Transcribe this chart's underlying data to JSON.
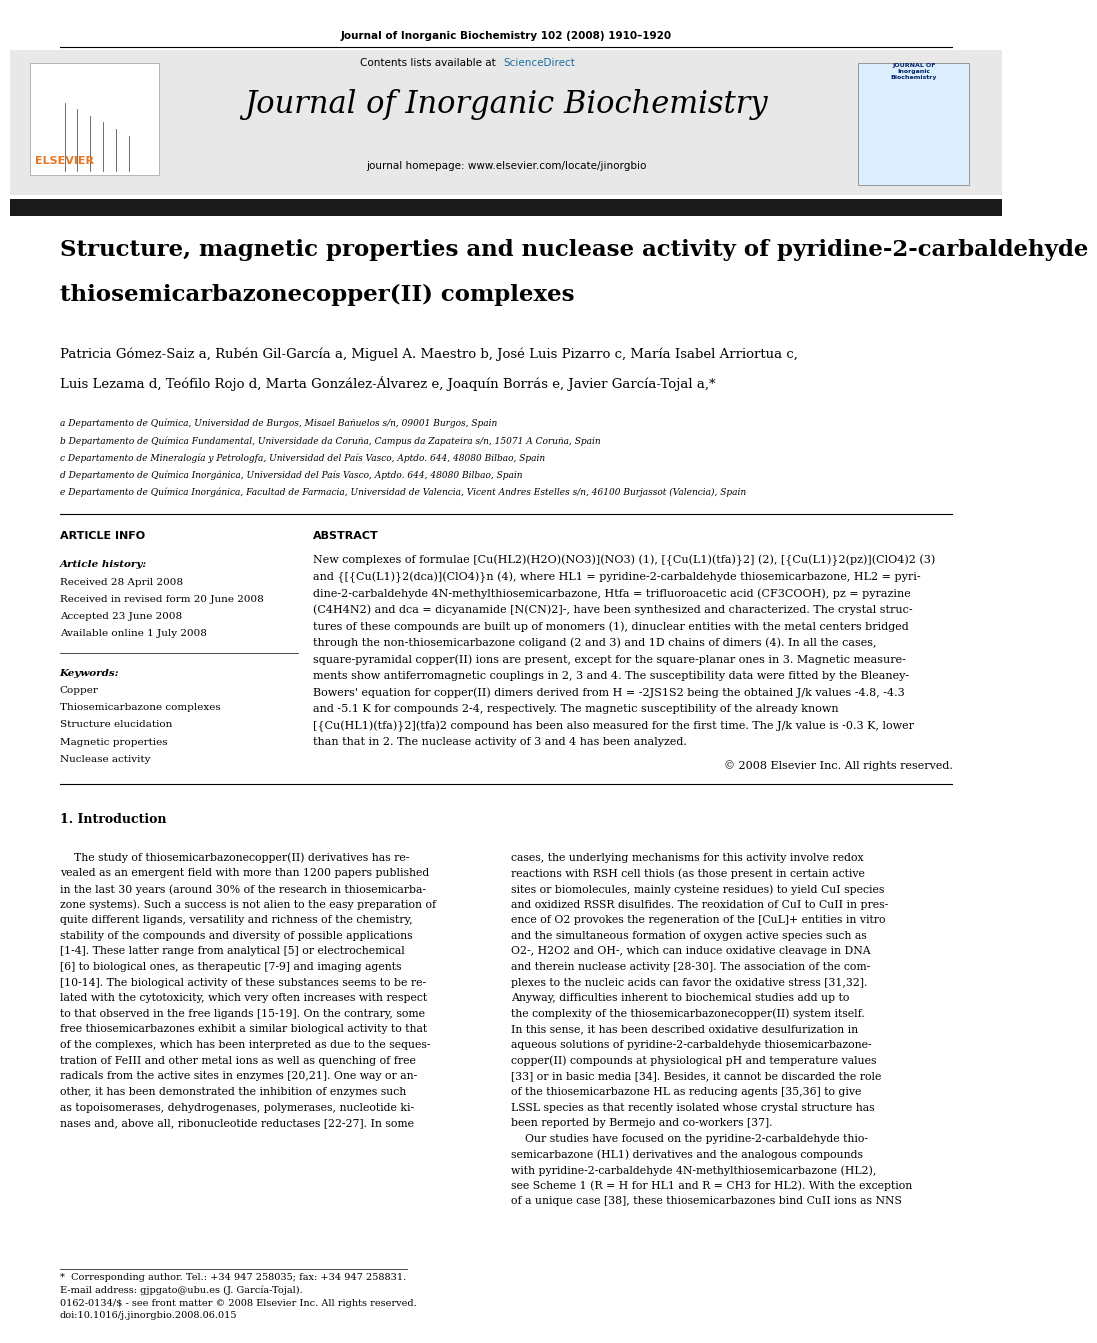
{
  "page_width": 9.92,
  "page_height": 13.23,
  "bg_color": "#ffffff",
  "header_journal_text": "Journal of Inorganic Biochemistry 102 (2008) 1910–1920",
  "header_journal_fontsize": 7.5,
  "contents_text": "Contents lists available at",
  "sciencedirect_text": "ScienceDirect",
  "sciencedirect_color": "#1a6fa0",
  "journal_homepage_text": "journal homepage: www.elsevier.com/locate/jinorgbio",
  "journal_name": "Journal of Inorganic Biochemistry",
  "journal_name_fontsize": 22,
  "elsevier_color": "#e87722",
  "article_title_line1": "Structure, magnetic properties and nuclease activity of pyridine-2-carbaldehyde",
  "article_title_line2": "thiosemicarbazonecopper(II) complexes",
  "article_title_fontsize": 16.5,
  "authors_line1": "Patricia Gómez-Saiz a, Rubén Gil-García a, Miguel A. Maestro b, José Luis Pizarro c, María Isabel Arriortua c,",
  "authors_line2": "Luis Lezama d, Teófilo Rojo d, Marta González-Álvarez e, Joaquín Borrás e, Javier García-Tojal a,*",
  "authors_fontsize": 9.5,
  "affil_a": "a Departamento de Química, Universidad de Burgos, Misael Bañuelos s/n, 09001 Burgos, Spain",
  "affil_b": "b Departamento de Química Fundamental, Universidade da Coruña, Campus da Zapateira s/n, 15071 A Coruña, Spain",
  "affil_c": "c Departamento de Mineralogía y Petrologfa, Universidad del País Vasco, Aptdo. 644, 48080 Bilbao, Spain",
  "affil_d": "d Departamento de Química Inorgánica, Universidad del País Vasco, Aptdo. 644, 48080 Bilbao, Spain",
  "affil_e": "e Departamento de Química Inorgánica, Facultad de Farmacia, Universidad de Valencia, Vicent Andres Estelles s/n, 46100 Burjassot (Valencia), Spain",
  "affil_fontsize": 6.5,
  "article_info_label": "ARTICLE INFO",
  "abstract_label": "ABSTRACT",
  "section_label_fontsize": 8,
  "article_history_label": "Article history:",
  "received1": "Received 28 April 2008",
  "received2": "Received in revised form 20 June 2008",
  "accepted": "Accepted 23 June 2008",
  "available": "Available online 1 July 2008",
  "keywords_label": "Keywords:",
  "keyword1": "Copper",
  "keyword2": "Thiosemicarbazone complexes",
  "keyword3": "Structure elucidation",
  "keyword4": "Magnetic properties",
  "keyword5": "Nuclease activity",
  "article_history_fontsize": 7.5,
  "abstract_lines": [
    "New complexes of formulae [Cu(HL2)(H2O)(NO3)](NO3) (1), [{Cu(L1)(tfa)}2] (2), [{Cu(L1)}2(pz)](ClO4)2 (3)",
    "and {[{Cu(L1)}2(dca)](ClO4)}n (4), where HL1 = pyridine-2-carbaldehyde thiosemicarbazone, HL2 = pyri-",
    "dine-2-carbaldehyde 4N-methylthiosemicarbazone, Htfa = trifluoroacetic acid (CF3COOH), pz = pyrazine",
    "(C4H4N2) and dca = dicyanamide [N(CN)2]-, have been synthesized and characterized. The crystal struc-",
    "tures of these compounds are built up of monomers (1), dinuclear entities with the metal centers bridged",
    "through the non-thiosemicarbazone coligand (2 and 3) and 1D chains of dimers (4). In all the cases,",
    "square-pyramidal copper(II) ions are present, except for the square-planar ones in 3. Magnetic measure-",
    "ments show antiferromagnetic couplings in 2, 3 and 4. The susceptibility data were fitted by the Bleaney-",
    "Bowers' equation for copper(II) dimers derived from H = -2JS1S2 being the obtained J/k values -4.8, -4.3",
    "and -5.1 K for compounds 2-4, respectively. The magnetic susceptibility of the already known",
    "[{Cu(HL1)(tfa)}2](tfa)2 compound has been also measured for the first time. The J/k value is -0.3 K, lower",
    "than that in 2. The nuclease activity of 3 and 4 has been analyzed."
  ],
  "abstract_fontsize": 8,
  "copyright_text": "© 2008 Elsevier Inc. All rights reserved.",
  "intro_heading": "1. Introduction",
  "intro_heading_fontsize": 9,
  "intro_col1_lines": [
    "    The study of thiosemicarbazonecopper(II) derivatives has re-",
    "vealed as an emergent field with more than 1200 papers published",
    "in the last 30 years (around 30% of the research in thiosemicarba-",
    "zone systems). Such a success is not alien to the easy preparation of",
    "quite different ligands, versatility and richness of the chemistry,",
    "stability of the compounds and diversity of possible applications",
    "[1-4]. These latter range from analytical [5] or electrochemical",
    "[6] to biological ones, as therapeutic [7-9] and imaging agents",
    "[10-14]. The biological activity of these substances seems to be re-",
    "lated with the cytotoxicity, which very often increases with respect",
    "to that observed in the free ligands [15-19]. On the contrary, some",
    "free thiosemicarbazones exhibit a similar biological activity to that",
    "of the complexes, which has been interpreted as due to the seques-",
    "tration of FeIII and other metal ions as well as quenching of free",
    "radicals from the active sites in enzymes [20,21]. One way or an-",
    "other, it has been demonstrated the inhibition of enzymes such",
    "as topoisomerases, dehydrogenases, polymerases, nucleotide ki-",
    "nases and, above all, ribonucleotide reductases [22-27]. In some"
  ],
  "intro_col2_lines": [
    "cases, the underlying mechanisms for this activity involve redox",
    "reactions with RSH cell thiols (as those present in certain active",
    "sites or biomolecules, mainly cysteine residues) to yield CuI species",
    "and oxidized RSSR disulfides. The reoxidation of CuI to CuII in pres-",
    "ence of O2 provokes the regeneration of the [CuL]+ entities in vitro",
    "and the simultaneous formation of oxygen active species such as",
    "O2-, H2O2 and OH-, which can induce oxidative cleavage in DNA",
    "and therein nuclease activity [28-30]. The association of the com-",
    "plexes to the nucleic acids can favor the oxidative stress [31,32].",
    "Anyway, difficulties inherent to biochemical studies add up to",
    "the complexity of the thiosemicarbazonecopper(II) system itself.",
    "In this sense, it has been described oxidative desulfurization in",
    "aqueous solutions of pyridine-2-carbaldehyde thiosemicarbazone-",
    "copper(II) compounds at physiological pH and temperature values",
    "[33] or in basic media [34]. Besides, it cannot be discarded the role",
    "of the thiosemicarbazone HL as reducing agents [35,36] to give",
    "LSSL species as that recently isolated whose crystal structure has",
    "been reported by Bermejo and co-workers [37].",
    "    Our studies have focused on the pyridine-2-carbaldehyde thio-",
    "semicarbazone (HL1) derivatives and the analogous compounds",
    "with pyridine-2-carbaldehyde 4N-methylthiosemicarbazone (HL2),",
    "see Scheme 1 (R = H for HL1 and R = CH3 for HL2). With the exception",
    "of a unique case [38], these thiosemicarbazones bind CuII ions as NNS"
  ],
  "intro_fontsize": 7.8,
  "footer_text1": "*  Corresponding author. Tel.: +34 947 258035; fax: +34 947 258831.",
  "footer_text2": "E-mail address: gjpgato@ubu.es (J. García-Tojal).",
  "footer_issn": "0162-0134/$ - see front matter © 2008 Elsevier Inc. All rights reserved.",
  "footer_doi": "doi:10.1016/j.jinorgbio.2008.06.015",
  "footer_fontsize": 7,
  "header_bg_color": "#e8e8e8",
  "black_bar_color": "#1a1a1a"
}
